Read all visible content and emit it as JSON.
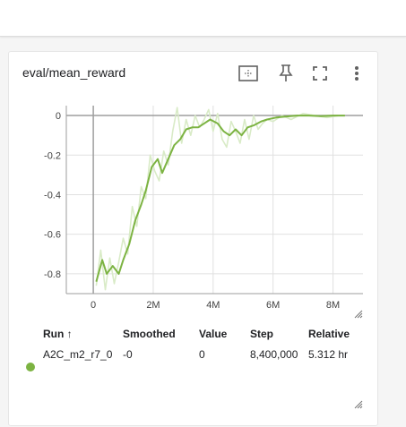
{
  "card": {
    "title": "eval/mean_reward",
    "icons": [
      "fit-domain-icon",
      "pin-icon",
      "fullscreen-icon",
      "more-vert-icon"
    ]
  },
  "colors": {
    "smoothed_line": "#7cb342",
    "raw_line": "#d9ebc7",
    "axis": "#9e9e9e",
    "grid": "#e0e0e0"
  },
  "chart_data": {
    "type": "line",
    "title": "eval/mean_reward",
    "xlabel": "",
    "ylabel": "",
    "xlim": [
      -0.9,
      9.0
    ],
    "ylim": [
      -0.9,
      0.05
    ],
    "xticks": [
      0,
      2,
      4,
      6,
      8
    ],
    "xtick_labels": [
      "0",
      "2M",
      "4M",
      "6M",
      "8M"
    ],
    "yticks": [
      0,
      -0.2,
      -0.4,
      -0.6,
      -0.8
    ],
    "ytick_labels": [
      "0",
      "-0.2",
      "-0.4",
      "-0.6",
      "-0.8"
    ],
    "grid": true,
    "series": [
      {
        "role": "smoothed",
        "x": [
          0.1,
          0.3,
          0.45,
          0.65,
          0.85,
          1.0,
          1.2,
          1.4,
          1.6,
          1.75,
          1.95,
          2.15,
          2.3,
          2.5,
          2.7,
          2.9,
          3.1,
          3.3,
          3.5,
          3.7,
          3.9,
          4.15,
          4.35,
          4.55,
          4.75,
          4.95,
          5.15,
          5.35,
          5.6,
          5.8,
          6.1,
          6.4,
          6.8,
          7.2,
          7.6,
          8.0,
          8.4
        ],
        "y": [
          -0.84,
          -0.73,
          -0.8,
          -0.76,
          -0.8,
          -0.73,
          -0.65,
          -0.53,
          -0.45,
          -0.38,
          -0.26,
          -0.22,
          -0.29,
          -0.22,
          -0.15,
          -0.12,
          -0.07,
          -0.06,
          -0.06,
          -0.04,
          -0.02,
          -0.04,
          -0.08,
          -0.1,
          -0.07,
          -0.1,
          -0.06,
          -0.05,
          -0.03,
          -0.02,
          -0.01,
          -0.005,
          0.0,
          0.0,
          -0.003,
          0.0,
          0.0
        ]
      },
      {
        "role": "raw",
        "x": [
          0.1,
          0.25,
          0.4,
          0.55,
          0.7,
          0.85,
          1.0,
          1.15,
          1.3,
          1.45,
          1.6,
          1.75,
          1.9,
          2.05,
          2.2,
          2.35,
          2.5,
          2.65,
          2.8,
          2.95,
          3.1,
          3.25,
          3.4,
          3.55,
          3.7,
          3.85,
          4.0,
          4.15,
          4.3,
          4.45,
          4.6,
          4.75,
          4.9,
          5.05,
          5.2,
          5.35,
          5.5,
          5.65,
          5.8,
          6.0,
          6.3,
          6.6,
          7.0,
          7.4,
          7.8,
          8.2,
          8.4
        ],
        "y": [
          -0.86,
          -0.68,
          -0.88,
          -0.72,
          -0.85,
          -0.74,
          -0.62,
          -0.7,
          -0.46,
          -0.56,
          -0.36,
          -0.42,
          -0.2,
          -0.28,
          -0.33,
          -0.18,
          -0.25,
          -0.08,
          0.04,
          -0.14,
          -0.02,
          -0.1,
          0.0,
          -0.06,
          -0.02,
          0.03,
          -0.08,
          0.01,
          -0.12,
          -0.16,
          -0.03,
          -0.08,
          -0.14,
          -0.02,
          -0.12,
          0.0,
          -0.07,
          -0.04,
          -0.02,
          -0.03,
          0.0,
          -0.02,
          0.01,
          0.0,
          -0.01,
          0.0,
          0.0
        ]
      }
    ]
  },
  "table": {
    "headers": {
      "run": "Run ↑",
      "smoothed": "Smoothed",
      "value": "Value",
      "step": "Step",
      "relative": "Relative"
    },
    "rows": [
      {
        "run": "A2C_m2_r7_0",
        "smoothed": "-0",
        "value": "0",
        "step": "8,400,000",
        "relative": "5.312 hr",
        "color": "#7cb342"
      }
    ]
  }
}
